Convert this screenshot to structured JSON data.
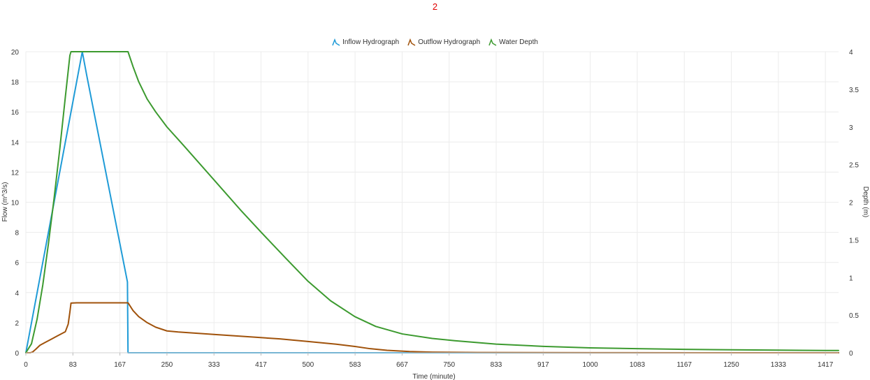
{
  "chart_data": {
    "type": "line",
    "title": "2",
    "xlabel": "Time (minute)",
    "ylabel": "Flow (m^3/s)",
    "y2label": "Depth (m)",
    "xlim": [
      0,
      1440
    ],
    "ylim": [
      0,
      20
    ],
    "y2lim": [
      0,
      4
    ],
    "x_ticks": [
      "0",
      "83",
      "167",
      "250",
      "333",
      "417",
      "500",
      "583",
      "667",
      "750",
      "833",
      "917",
      "1000",
      "1083",
      "1167",
      "1250",
      "1333",
      "1417"
    ],
    "x_tick_values": [
      0,
      83.33,
      166.67,
      250,
      333.33,
      416.67,
      500,
      583.33,
      666.67,
      750,
      833.33,
      916.67,
      1000,
      1083.33,
      1166.67,
      1250,
      1333.33,
      1416.67
    ],
    "y_ticks": [
      "0",
      "2",
      "4",
      "6",
      "8",
      "10",
      "12",
      "14",
      "16",
      "18",
      "20"
    ],
    "y2_ticks": [
      "0",
      "0.5",
      "1",
      "1.5",
      "2",
      "2.5",
      "3",
      "3.5",
      "4"
    ],
    "grid": true,
    "legend_position": "top-center",
    "series": [
      {
        "name": "Inflow Hydrograph",
        "axis": "left",
        "color": "#1f9bd7",
        "x": [
          0,
          100,
          108,
          180,
          181,
          1440
        ],
        "y": [
          0,
          20,
          18.4,
          4.7,
          0,
          0
        ]
      },
      {
        "name": "Outflow Hydrograph",
        "axis": "left",
        "color": "#a0520b",
        "x": [
          0,
          8,
          12,
          18,
          25,
          35,
          45,
          55,
          65,
          70,
          75,
          78,
          80,
          90,
          120,
          150,
          181,
          190,
          200,
          215,
          230,
          250,
          270,
          333,
          400,
          450,
          500,
          550,
          583,
          610,
          640,
          680,
          720,
          800,
          900,
          1000,
          1440
        ],
        "y": [
          0,
          0,
          0.05,
          0.25,
          0.5,
          0.7,
          0.9,
          1.1,
          1.3,
          1.4,
          1.9,
          2.7,
          3.3,
          3.32,
          3.32,
          3.32,
          3.32,
          2.8,
          2.4,
          2.0,
          1.7,
          1.45,
          1.38,
          1.22,
          1.05,
          0.92,
          0.75,
          0.57,
          0.42,
          0.27,
          0.16,
          0.08,
          0.04,
          0.02,
          0.01,
          0.005,
          0
        ]
      },
      {
        "name": "Water Depth",
        "axis": "right",
        "color": "#3c9a2f",
        "x": [
          0,
          10,
          20,
          30,
          40,
          50,
          60,
          70,
          78,
          80,
          100,
          140,
          181,
          190,
          200,
          215,
          230,
          250,
          280,
          333,
          380,
          417,
          460,
          500,
          540,
          583,
          620,
          667,
          720,
          760,
          833,
          917,
          1000,
          1083,
          1167,
          1250,
          1333,
          1417,
          1440
        ],
        "y": [
          0,
          0.12,
          0.45,
          0.9,
          1.45,
          2.05,
          2.7,
          3.4,
          3.95,
          4.0,
          4.0,
          4.0,
          4.0,
          3.8,
          3.6,
          3.37,
          3.2,
          3.0,
          2.75,
          2.3,
          1.9,
          1.6,
          1.26,
          0.95,
          0.69,
          0.48,
          0.35,
          0.25,
          0.19,
          0.16,
          0.115,
          0.085,
          0.065,
          0.055,
          0.045,
          0.04,
          0.035,
          0.03,
          0.03
        ]
      }
    ]
  }
}
